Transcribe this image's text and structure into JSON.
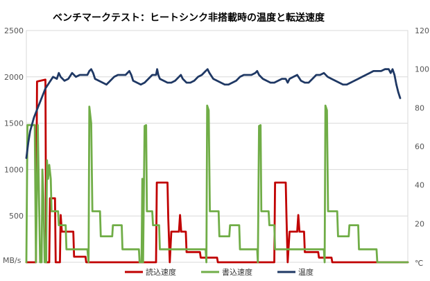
{
  "chart_data": {
    "type": "line",
    "title": "ベンチマークテスト：ヒートシンク非搭載時の温度と転送速度",
    "y_left": {
      "unit": "MB/s",
      "range": [
        0,
        2500
      ],
      "ticks": [
        0,
        500,
        1000,
        1500,
        2000,
        2500
      ]
    },
    "y_right": {
      "unit": "℃",
      "range": [
        0,
        120
      ],
      "ticks": [
        0,
        20,
        40,
        60,
        80,
        100,
        120
      ]
    },
    "x_range": [
      0,
      100
    ],
    "grid": true,
    "legend_position": "bottom",
    "series": [
      {
        "name": "読込速度",
        "axis": "left",
        "color": "#c00000",
        "points": [
          [
            0,
            0
          ],
          [
            2.5,
            0
          ],
          [
            2.8,
            1950
          ],
          [
            5,
            1970
          ],
          [
            5.2,
            0
          ],
          [
            6,
            0
          ],
          [
            6.2,
            690
          ],
          [
            7.5,
            690
          ],
          [
            7.7,
            0
          ],
          [
            8.8,
            0
          ],
          [
            9,
            510
          ],
          [
            9.3,
            330
          ],
          [
            12.3,
            330
          ],
          [
            12.5,
            60
          ],
          [
            15.5,
            60
          ],
          [
            15.7,
            0
          ],
          [
            34,
            0
          ],
          [
            34.2,
            860
          ],
          [
            37,
            860
          ],
          [
            37.2,
            480
          ],
          [
            37.6,
            0
          ],
          [
            38,
            330
          ],
          [
            40,
            330
          ],
          [
            40.3,
            510
          ],
          [
            40.6,
            330
          ],
          [
            41.8,
            330
          ],
          [
            42,
            110
          ],
          [
            45.5,
            110
          ],
          [
            45.7,
            50
          ],
          [
            50,
            50
          ],
          [
            50.2,
            0
          ],
          [
            65,
            0
          ],
          [
            65.2,
            860
          ],
          [
            68,
            860
          ],
          [
            68.2,
            480
          ],
          [
            68.5,
            0
          ],
          [
            69,
            330
          ],
          [
            71,
            330
          ],
          [
            71.3,
            510
          ],
          [
            71.6,
            330
          ],
          [
            72.8,
            330
          ],
          [
            73,
            110
          ],
          [
            76.5,
            110
          ],
          [
            76.7,
            50
          ],
          [
            80,
            50
          ],
          [
            80.2,
            0
          ],
          [
            100,
            0
          ]
        ]
      },
      {
        "name": "書込速度",
        "axis": "left",
        "color": "#70ad47",
        "points": [
          [
            0,
            0
          ],
          [
            0.3,
            1480
          ],
          [
            2.2,
            1480
          ],
          [
            2.5,
            0
          ],
          [
            3,
            1480
          ],
          [
            3.6,
            0
          ],
          [
            4,
            0
          ],
          [
            4.2,
            1000
          ],
          [
            4.5,
            680
          ],
          [
            4.8,
            0
          ],
          [
            5.2,
            0
          ],
          [
            5.4,
            1100
          ],
          [
            5.7,
            900
          ],
          [
            6,
            1050
          ],
          [
            6.4,
            900
          ],
          [
            6.6,
            550
          ],
          [
            8.3,
            550
          ],
          [
            8.5,
            400
          ],
          [
            10.3,
            400
          ],
          [
            10.5,
            140
          ],
          [
            16,
            140
          ],
          [
            16.3,
            0
          ],
          [
            16.5,
            1680
          ],
          [
            17,
            1500
          ],
          [
            17.3,
            550
          ],
          [
            19.3,
            550
          ],
          [
            19.5,
            280
          ],
          [
            22.5,
            280
          ],
          [
            22.7,
            400
          ],
          [
            25,
            400
          ],
          [
            25.2,
            140
          ],
          [
            29.5,
            140
          ],
          [
            29.7,
            0
          ],
          [
            30.2,
            0
          ],
          [
            30.4,
            900
          ],
          [
            30.6,
            0
          ],
          [
            31,
            1470
          ],
          [
            31.4,
            1480
          ],
          [
            31.6,
            550
          ],
          [
            33,
            550
          ],
          [
            33.2,
            400
          ],
          [
            34.8,
            400
          ],
          [
            35,
            140
          ],
          [
            47,
            140
          ],
          [
            47.2,
            0
          ],
          [
            47.4,
            1690
          ],
          [
            47.8,
            1640
          ],
          [
            48.1,
            550
          ],
          [
            50.4,
            550
          ],
          [
            50.6,
            280
          ],
          [
            53.2,
            280
          ],
          [
            53.4,
            400
          ],
          [
            55.8,
            400
          ],
          [
            56,
            140
          ],
          [
            60.5,
            140
          ],
          [
            60.7,
            0
          ],
          [
            61,
            1470
          ],
          [
            61.4,
            1480
          ],
          [
            61.6,
            550
          ],
          [
            63.5,
            550
          ],
          [
            63.7,
            400
          ],
          [
            65,
            400
          ],
          [
            65.2,
            140
          ],
          [
            78,
            140
          ],
          [
            78.2,
            0
          ],
          [
            78.4,
            1690
          ],
          [
            78.8,
            1640
          ],
          [
            79.1,
            550
          ],
          [
            81.5,
            550
          ],
          [
            81.7,
            280
          ],
          [
            84.5,
            280
          ],
          [
            84.7,
            400
          ],
          [
            87,
            400
          ],
          [
            87.2,
            140
          ],
          [
            91.8,
            140
          ],
          [
            92,
            0
          ],
          [
            100,
            0
          ]
        ]
      },
      {
        "name": "温度",
        "axis": "right",
        "color": "#1f3864",
        "points": [
          [
            0,
            54
          ],
          [
            0.5,
            62
          ],
          [
            1,
            68
          ],
          [
            2,
            75
          ],
          [
            3,
            80
          ],
          [
            4,
            85
          ],
          [
            5,
            90
          ],
          [
            6,
            93
          ],
          [
            7,
            96
          ],
          [
            8,
            95
          ],
          [
            8.5,
            98
          ],
          [
            9,
            96
          ],
          [
            10,
            94
          ],
          [
            11,
            95
          ],
          [
            12,
            98
          ],
          [
            13,
            96
          ],
          [
            14,
            97
          ],
          [
            16,
            97
          ],
          [
            16.5,
            99
          ],
          [
            17,
            100
          ],
          [
            17.5,
            98
          ],
          [
            18,
            95
          ],
          [
            19,
            94
          ],
          [
            20,
            93
          ],
          [
            21,
            92
          ],
          [
            22,
            94
          ],
          [
            23,
            96
          ],
          [
            24,
            97
          ],
          [
            26,
            97
          ],
          [
            27,
            99
          ],
          [
            27.5,
            97
          ],
          [
            28,
            94
          ],
          [
            29,
            93
          ],
          [
            30,
            92
          ],
          [
            31,
            93
          ],
          [
            32,
            95
          ],
          [
            33,
            97
          ],
          [
            34,
            97
          ],
          [
            34.3,
            100
          ],
          [
            34.6,
            97
          ],
          [
            35,
            95
          ],
          [
            36,
            94
          ],
          [
            37,
            93
          ],
          [
            38,
            93
          ],
          [
            39,
            94
          ],
          [
            40,
            96
          ],
          [
            40.5,
            97
          ],
          [
            41,
            95
          ],
          [
            42,
            93
          ],
          [
            43,
            93
          ],
          [
            44,
            94
          ],
          [
            45,
            96
          ],
          [
            46,
            97
          ],
          [
            47,
            99
          ],
          [
            47.5,
            100
          ],
          [
            48,
            98
          ],
          [
            49,
            95
          ],
          [
            50,
            94
          ],
          [
            51,
            93
          ],
          [
            52,
            92
          ],
          [
            53,
            92
          ],
          [
            54,
            93
          ],
          [
            55,
            94
          ],
          [
            56,
            96
          ],
          [
            57,
            97
          ],
          [
            59,
            97
          ],
          [
            60,
            98
          ],
          [
            60.5,
            99
          ],
          [
            61,
            97
          ],
          [
            62,
            95
          ],
          [
            63,
            94
          ],
          [
            64,
            93
          ],
          [
            65,
            93
          ],
          [
            66,
            94
          ],
          [
            67,
            95
          ],
          [
            68,
            95
          ],
          [
            68.5,
            93
          ],
          [
            69,
            95
          ],
          [
            70,
            96
          ],
          [
            71,
            97
          ],
          [
            72,
            94
          ],
          [
            73,
            93
          ],
          [
            74,
            93
          ],
          [
            75,
            95
          ],
          [
            76,
            97
          ],
          [
            77,
            97
          ],
          [
            78,
            98
          ],
          [
            79,
            96
          ],
          [
            80,
            95
          ],
          [
            81,
            94
          ],
          [
            82,
            93
          ],
          [
            83,
            92
          ],
          [
            84,
            92
          ],
          [
            85,
            93
          ],
          [
            86,
            94
          ],
          [
            87,
            95
          ],
          [
            88,
            96
          ],
          [
            89,
            97
          ],
          [
            90,
            98
          ],
          [
            91,
            99
          ],
          [
            93,
            99
          ],
          [
            94,
            100
          ],
          [
            95,
            100
          ],
          [
            95.5,
            98
          ],
          [
            96,
            100
          ],
          [
            96.5,
            97
          ],
          [
            97,
            92
          ],
          [
            97.5,
            88
          ],
          [
            98,
            85
          ]
        ]
      }
    ]
  }
}
